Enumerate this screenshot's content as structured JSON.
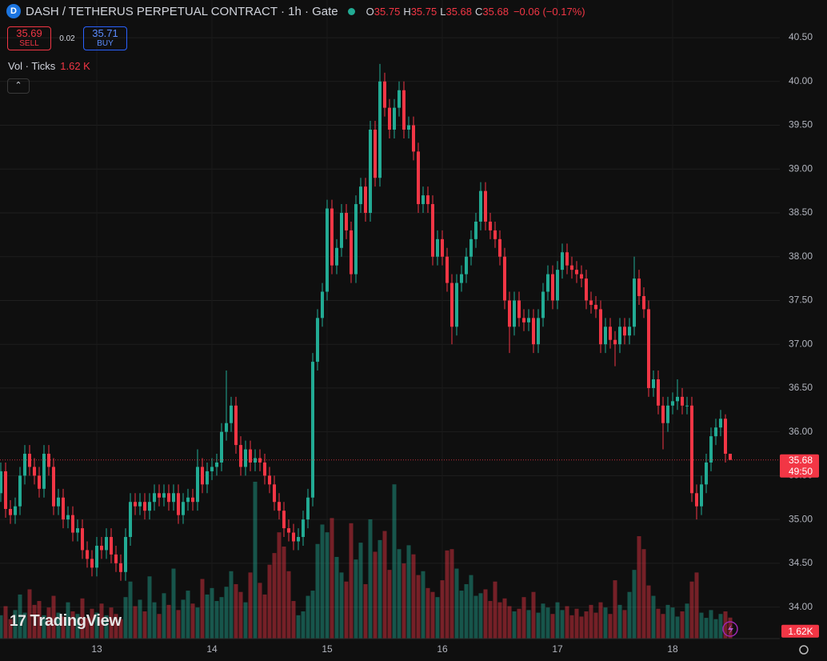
{
  "header": {
    "title": "DASH / TETHERUS PERPETUAL CONTRACT · 1h · Gate",
    "ohlc": [
      {
        "label": "O",
        "value": "35.75"
      },
      {
        "label": "H",
        "value": "35.75"
      },
      {
        "label": "L",
        "value": "35.68"
      },
      {
        "label": "C",
        "value": "35.68"
      }
    ],
    "change": "−0.06 (−0.17%)",
    "sell_price": "35.69",
    "sell": "SELL",
    "spread": "0.02",
    "buy_price": "35.71",
    "buy": "BUY",
    "indicator_name": "Vol · Ticks",
    "indicator_value": "1.62 K"
  },
  "last_price": {
    "price": "35.68",
    "countdown": "49:50"
  },
  "volume_last": "1.62K",
  "logo": "TradingView",
  "chart_data": {
    "type": "candlestick",
    "up_color": "#22ab94",
    "down_color": "#f23645",
    "categories": [
      null,
      null,
      null,
      null,
      null,
      null,
      null,
      null,
      null,
      null,
      null,
      null,
      null,
      null,
      null,
      null,
      null,
      null,
      null,
      null,
      "13",
      null,
      null,
      null,
      null,
      null,
      null,
      null,
      null,
      null,
      null,
      null,
      null,
      null,
      null,
      null,
      null,
      null,
      null,
      null,
      null,
      null,
      null,
      null,
      "14",
      null,
      null,
      null,
      null,
      null,
      null,
      null,
      null,
      null,
      null,
      null,
      null,
      null,
      null,
      null,
      null,
      null,
      null,
      null,
      null,
      null,
      null,
      null,
      "15",
      null,
      null,
      null,
      null,
      null,
      null,
      null,
      null,
      null,
      null,
      null,
      null,
      null,
      null,
      null,
      null,
      null,
      null,
      null,
      null,
      null,
      null,
      null,
      "16",
      null,
      null,
      null,
      null,
      null,
      null,
      null,
      null,
      null,
      null,
      null,
      null,
      null,
      null,
      null,
      null,
      null,
      null,
      null,
      null,
      null,
      null,
      null,
      "17",
      null,
      null,
      null,
      null,
      null,
      null,
      null,
      null,
      null,
      null,
      null,
      null,
      null,
      null,
      null,
      null,
      null,
      null,
      null,
      null,
      null,
      null,
      null,
      "18",
      null,
      null,
      null,
      null,
      null,
      null,
      null,
      null,
      null,
      null,
      null,
      null
    ],
    "open": [
      35.3,
      35.55,
      35.12,
      35.05,
      35.15,
      35.5,
      35.75,
      35.6,
      35.5,
      35.35,
      35.75,
      35.6,
      35.15,
      35.25,
      35.0,
      35.05,
      34.85,
      34.9,
      34.65,
      34.55,
      34.45,
      34.7,
      34.65,
      34.8,
      34.6,
      34.5,
      34.4,
      34.8,
      35.2,
      35.15,
      35.2,
      35.1,
      35.2,
      35.3,
      35.25,
      35.3,
      35.2,
      35.3,
      35.05,
      35.2,
      35.25,
      35.2,
      35.6,
      35.4,
      35.55,
      35.6,
      35.65,
      36.0,
      36.1,
      36.3,
      35.85,
      35.6,
      35.8,
      35.65,
      35.7,
      35.65,
      35.5,
      35.4,
      35.2,
      35.1,
      34.9,
      34.85,
      34.75,
      34.8,
      35.0,
      35.25,
      36.8,
      37.3,
      37.6,
      38.55,
      37.9,
      38.1,
      38.5,
      38.3,
      37.8,
      38.6,
      38.8,
      38.5,
      39.45,
      38.9,
      40.0,
      39.7,
      39.45,
      39.7,
      39.9,
      39.45,
      39.5,
      39.2,
      38.6,
      38.7,
      38.6,
      38.0,
      38.2,
      38.0,
      37.7,
      37.2,
      37.7,
      37.8,
      38.0,
      38.2,
      38.4,
      38.75,
      38.4,
      38.3,
      38.2,
      38.0,
      37.5,
      37.2,
      37.5,
      37.3,
      37.25,
      37.3,
      37.0,
      37.3,
      37.6,
      37.8,
      37.5,
      37.85,
      38.05,
      37.9,
      37.85,
      37.8,
      37.75,
      37.5,
      37.45,
      37.4,
      37.0,
      37.2,
      37.05,
      37.0,
      37.2,
      37.1,
      37.2,
      37.75,
      37.55,
      37.4,
      36.5,
      36.6,
      36.3,
      36.1,
      36.3,
      36.35,
      36.4,
      36.3,
      36.3,
      35.3,
      35.15,
      35.4,
      35.65,
      35.95,
      36.05,
      36.15,
      35.75
    ],
    "high": [
      35.65,
      35.65,
      35.22,
      35.25,
      35.6,
      35.85,
      35.85,
      35.7,
      35.6,
      35.85,
      35.85,
      35.7,
      35.35,
      35.35,
      35.15,
      35.15,
      35.0,
      35.0,
      34.75,
      34.65,
      34.8,
      34.8,
      34.9,
      34.9,
      34.7,
      34.6,
      34.9,
      35.3,
      35.3,
      35.3,
      35.3,
      35.3,
      35.4,
      35.4,
      35.4,
      35.4,
      35.4,
      35.4,
      35.3,
      35.35,
      35.35,
      35.8,
      35.7,
      35.65,
      35.7,
      35.75,
      36.1,
      36.7,
      36.4,
      36.4,
      35.95,
      35.9,
      35.9,
      35.8,
      35.8,
      35.75,
      35.6,
      35.5,
      35.3,
      35.2,
      35.0,
      34.95,
      34.9,
      35.1,
      35.35,
      36.9,
      37.4,
      37.7,
      38.65,
      38.65,
      38.2,
      38.6,
      38.6,
      38.4,
      38.7,
      38.9,
      38.9,
      39.55,
      39.55,
      40.2,
      40.1,
      39.8,
      39.8,
      40.0,
      40.0,
      39.6,
      39.6,
      39.3,
      38.8,
      38.8,
      38.7,
      38.3,
      38.3,
      38.1,
      37.8,
      37.8,
      37.9,
      38.1,
      38.3,
      38.5,
      38.85,
      38.85,
      38.5,
      38.4,
      38.3,
      38.1,
      37.6,
      37.6,
      37.6,
      37.4,
      37.4,
      37.4,
      37.4,
      37.7,
      37.9,
      37.9,
      37.95,
      38.15,
      38.15,
      38.0,
      37.95,
      37.9,
      37.85,
      37.6,
      37.55,
      37.5,
      37.3,
      37.3,
      37.15,
      37.3,
      37.3,
      37.3,
      38.0,
      37.85,
      37.65,
      37.5,
      36.7,
      36.7,
      36.4,
      36.4,
      36.45,
      36.6,
      36.5,
      36.4,
      36.4,
      35.4,
      35.5,
      35.75,
      36.05,
      36.15,
      36.25,
      36.2,
      35.75
    ],
    "low": [
      35.2,
      35.02,
      34.95,
      34.95,
      35.05,
      35.4,
      35.5,
      35.4,
      35.25,
      35.25,
      35.5,
      35.05,
      35.05,
      34.9,
      34.9,
      34.75,
      34.75,
      34.55,
      34.45,
      34.35,
      34.35,
      34.55,
      34.55,
      34.5,
      34.4,
      34.3,
      34.3,
      34.7,
      35.05,
      35.05,
      35.0,
      35.0,
      35.1,
      35.15,
      35.15,
      35.1,
      35.1,
      34.95,
      34.95,
      35.1,
      35.1,
      35.1,
      35.3,
      35.3,
      35.45,
      35.5,
      35.55,
      35.9,
      36.0,
      35.75,
      35.5,
      35.5,
      35.55,
      35.55,
      35.55,
      35.4,
      35.3,
      35.1,
      35.0,
      34.8,
      34.75,
      34.65,
      34.65,
      34.7,
      34.9,
      35.15,
      36.7,
      37.2,
      37.5,
      37.8,
      37.8,
      38.0,
      38.2,
      37.7,
      37.7,
      38.5,
      38.4,
      38.4,
      38.8,
      38.8,
      39.6,
      39.35,
      39.35,
      39.6,
      39.35,
      39.35,
      39.1,
      38.5,
      38.5,
      38.5,
      37.9,
      37.9,
      37.9,
      37.6,
      37.0,
      37.1,
      37.6,
      37.7,
      37.9,
      38.1,
      38.3,
      38.3,
      38.2,
      38.1,
      37.9,
      37.4,
      36.9,
      37.1,
      37.2,
      37.15,
      37.15,
      36.9,
      36.9,
      37.2,
      37.5,
      37.4,
      37.4,
      37.75,
      37.8,
      37.75,
      37.7,
      37.65,
      37.4,
      37.35,
      37.3,
      36.9,
      36.9,
      36.95,
      36.75,
      36.9,
      37.0,
      37.0,
      37.1,
      37.45,
      37.3,
      36.4,
      36.4,
      36.2,
      35.8,
      36.0,
      36.2,
      36.25,
      36.2,
      36.2,
      35.2,
      35.0,
      35.05,
      35.3,
      35.55,
      35.85,
      35.95,
      35.65,
      35.68
    ],
    "close": [
      35.55,
      35.12,
      35.05,
      35.15,
      35.5,
      35.75,
      35.6,
      35.5,
      35.35,
      35.75,
      35.6,
      35.15,
      35.25,
      35.0,
      35.05,
      34.85,
      34.9,
      34.65,
      34.55,
      34.45,
      34.7,
      34.65,
      34.8,
      34.6,
      34.5,
      34.4,
      34.8,
      35.2,
      35.15,
      35.2,
      35.1,
      35.2,
      35.3,
      35.25,
      35.3,
      35.2,
      35.3,
      35.05,
      35.2,
      35.25,
      35.2,
      35.6,
      35.4,
      35.55,
      35.6,
      35.65,
      36.0,
      36.1,
      36.3,
      35.85,
      35.6,
      35.8,
      35.65,
      35.7,
      35.65,
      35.5,
      35.4,
      35.2,
      35.1,
      34.9,
      34.85,
      34.75,
      34.8,
      35.0,
      35.25,
      36.8,
      37.3,
      37.6,
      38.55,
      37.9,
      38.1,
      38.5,
      38.3,
      37.8,
      38.6,
      38.8,
      38.5,
      39.45,
      38.9,
      40.0,
      39.7,
      39.45,
      39.7,
      39.9,
      39.45,
      39.5,
      39.2,
      38.6,
      38.7,
      38.6,
      38.0,
      38.2,
      38.0,
      37.7,
      37.2,
      37.7,
      37.8,
      38.0,
      38.2,
      38.4,
      38.75,
      38.4,
      38.3,
      38.2,
      38.0,
      37.5,
      37.2,
      37.5,
      37.3,
      37.25,
      37.3,
      37.0,
      37.3,
      37.6,
      37.8,
      37.5,
      37.85,
      38.05,
      37.9,
      37.85,
      37.8,
      37.75,
      37.5,
      37.45,
      37.4,
      37.0,
      37.2,
      37.05,
      37.0,
      37.2,
      37.1,
      37.2,
      37.75,
      37.55,
      37.4,
      36.5,
      36.6,
      36.3,
      36.1,
      36.3,
      36.35,
      36.4,
      36.3,
      36.3,
      35.3,
      35.15,
      35.4,
      35.65,
      35.95,
      36.05,
      36.15,
      35.75,
      35.68
    ],
    "volume": [
      1800,
      2500,
      1500,
      2200,
      3400,
      2000,
      3800,
      2600,
      2900,
      1800,
      2400,
      3300,
      2000,
      1700,
      2800,
      2100,
      1900,
      3100,
      1600,
      2300,
      2000,
      2700,
      1800,
      2400,
      1900,
      1500,
      3200,
      4400,
      2500,
      3000,
      2100,
      4800,
      2800,
      1900,
      3500,
      2600,
      5400,
      2200,
      3000,
      3700,
      2700,
      2400,
      4600,
      3400,
      3900,
      2900,
      3200,
      4000,
      5200,
      4200,
      3600,
      2800,
      5100,
      12100,
      4300,
      3400,
      5700,
      6600,
      8200,
      7100,
      5200,
      2900,
      1800,
      2100,
      3300,
      3700,
      7300,
      8800,
      8200,
      9300,
      6300,
      5100,
      4400,
      8900,
      6100,
      7400,
      4200,
      9200,
      6700,
      7600,
      8300,
      5300,
      11900,
      6900,
      5800,
      7200,
      6500,
      4900,
      5200,
      3900,
      3600,
      3200,
      4500,
      6800,
      6900,
      5400,
      3700,
      4200,
      4900,
      3300,
      3500,
      3800,
      2900,
      4400,
      2800,
      3100,
      2500,
      2100,
      2300,
      3200,
      2200,
      3600,
      2000,
      2700,
      2400,
      1900,
      2800,
      2200,
      2500,
      1800,
      2300,
      1700,
      2100,
      2600,
      2000,
      2800,
      2400,
      1900,
      4500,
      2600,
      2200,
      3600,
      5300,
      7900,
      6900,
      4100,
      3300,
      2300,
      1900,
      2600,
      2400,
      1700,
      2100,
      2700,
      4400,
      5100,
      2000,
      1600,
      2200,
      1500,
      1900,
      2100,
      1620
    ],
    "ylim": [
      33.64,
      40.93
    ],
    "yticks": [
      {
        "value": 34,
        "label": "34.00"
      },
      {
        "value": 34.5,
        "label": "34.50"
      },
      {
        "value": 35,
        "label": "35.00"
      },
      {
        "value": 35.5,
        "label": "35.50"
      },
      {
        "value": 36,
        "label": "36.00"
      },
      {
        "value": 36.5,
        "label": "36.50"
      },
      {
        "value": 37,
        "label": "37.00"
      },
      {
        "value": 37.5,
        "label": "37.50"
      },
      {
        "value": 38,
        "label": "38.00"
      },
      {
        "value": 38.5,
        "label": "38.50"
      },
      {
        "value": 39,
        "label": "39.00"
      },
      {
        "value": 39.5,
        "label": "39.50"
      },
      {
        "value": 40,
        "label": "40.00"
      },
      {
        "value": 40.5,
        "label": "40.50"
      }
    ],
    "grid": true
  }
}
